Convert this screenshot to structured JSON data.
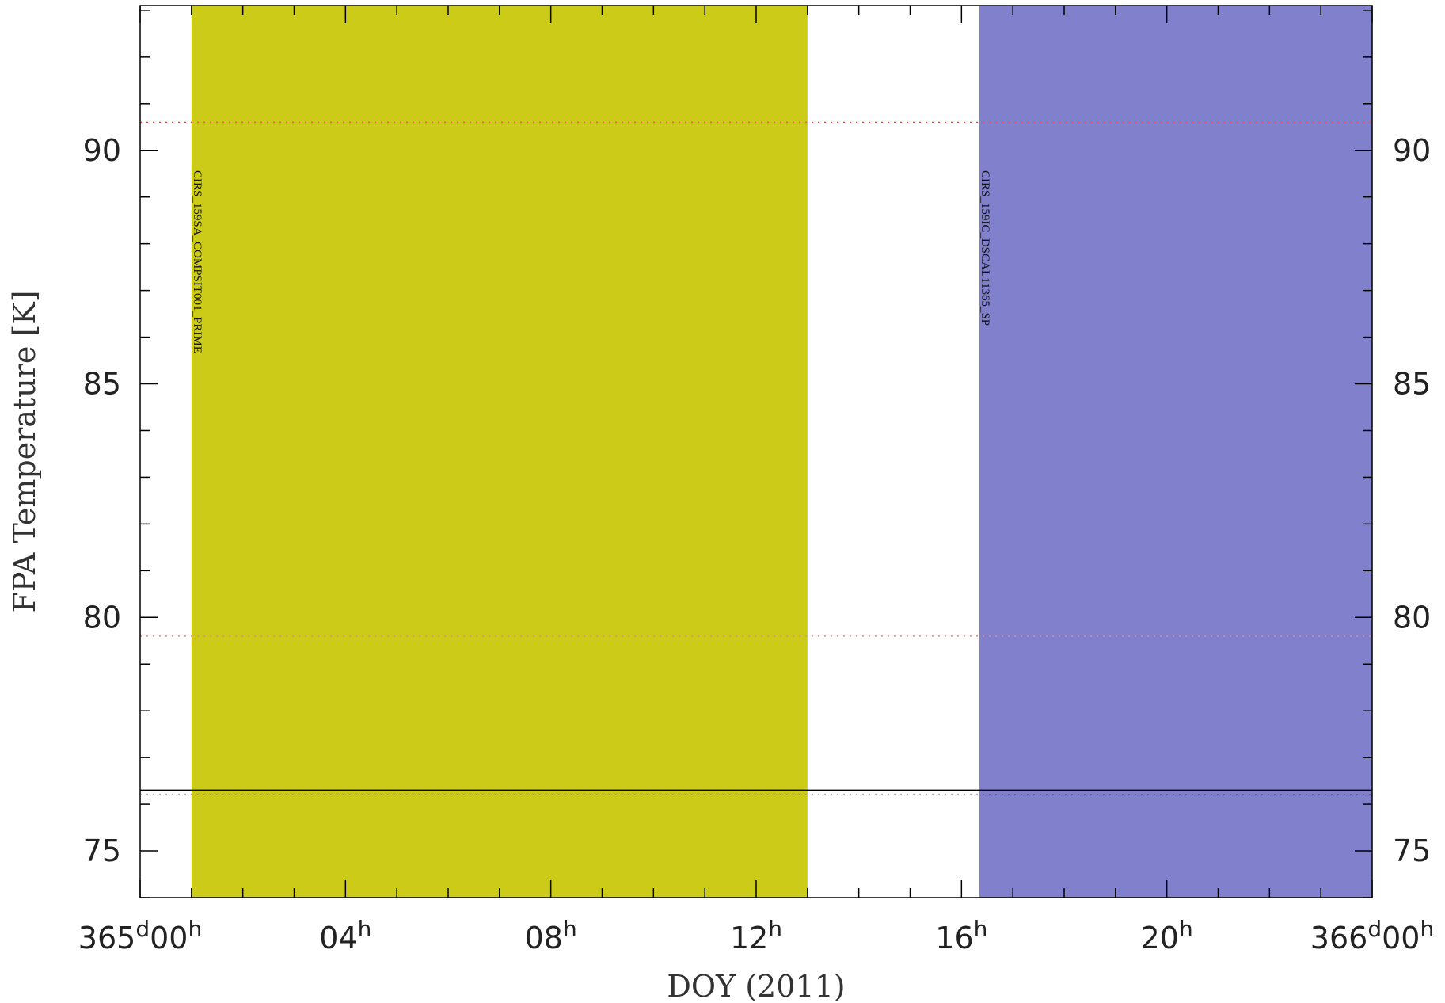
{
  "chart_data": {
    "type": "line",
    "title": "",
    "xlabel": "DOY (2011)",
    "ylabel": "FPA Temperature [K]",
    "xlim_hours": [
      0,
      24
    ],
    "ylim": [
      74,
      93.1
    ],
    "y_ticks": [
      {
        "value": 75,
        "label": "75"
      },
      {
        "value": 80,
        "label": "80"
      },
      {
        "value": 85,
        "label": "85"
      },
      {
        "value": 90,
        "label": "90"
      }
    ],
    "x_ticks": [
      {
        "hour": 0,
        "main": "365",
        "sup1": "d",
        "mid": "00",
        "sup2": "h"
      },
      {
        "hour": 4,
        "main": "",
        "sup1": "",
        "mid": "04",
        "sup2": "h"
      },
      {
        "hour": 8,
        "main": "",
        "sup1": "",
        "mid": "08",
        "sup2": "h"
      },
      {
        "hour": 12,
        "main": "",
        "sup1": "",
        "mid": "12",
        "sup2": "h"
      },
      {
        "hour": 16,
        "main": "",
        "sup1": "",
        "mid": "16",
        "sup2": "h"
      },
      {
        "hour": 20,
        "main": "",
        "sup1": "",
        "mid": "20",
        "sup2": "h"
      },
      {
        "hour": 24,
        "main": "366",
        "sup1": "d",
        "mid": "00",
        "sup2": "h"
      }
    ],
    "bands": [
      {
        "label": "CIRS_159SA_COMPSIT001_PRIME",
        "start_hour": 1.0,
        "end_hour": 13.0,
        "color": "#cccc18"
      },
      {
        "label": "CIRS_159IC_DSCAL11365_SP",
        "start_hour": 16.35,
        "end_hour": 24.0,
        "color": "#8080cc"
      }
    ],
    "series": [
      {
        "style": "solid",
        "color": "#000000",
        "x": [
          0,
          24
        ],
        "values": [
          76.3,
          76.3
        ]
      }
    ],
    "reference_lines": [
      {
        "value": 90.6,
        "style": "dotted",
        "color": "#e85555"
      },
      {
        "value": 79.6,
        "style": "dotted",
        "color": "#e88888"
      },
      {
        "value": 76.2,
        "style": "dotted",
        "color": "#6a3a6a"
      }
    ]
  }
}
